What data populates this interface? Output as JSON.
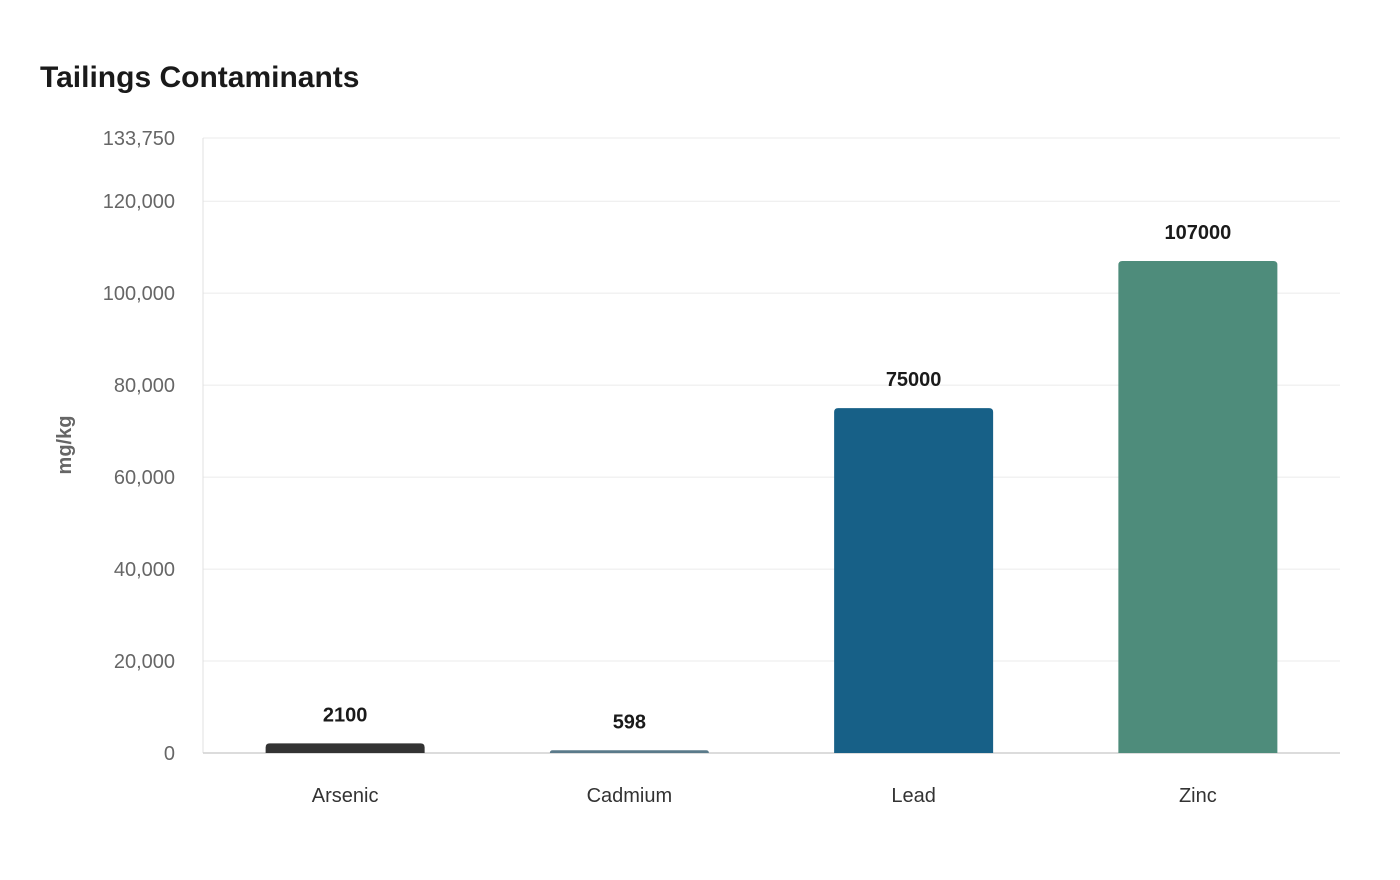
{
  "chart_data": {
    "type": "bar",
    "title": "Tailings Contaminants",
    "xlabel": "",
    "ylabel": "mg/kg",
    "categories": [
      "Arsenic",
      "Cadmium",
      "Lead",
      "Zinc"
    ],
    "values": [
      2100,
      598,
      75000,
      107000
    ],
    "data_labels": [
      "2100",
      "598",
      "75000",
      "107000"
    ],
    "colors": [
      "#333333",
      "#5a7a8a",
      "#176087",
      "#4e8c7b"
    ],
    "ylim": [
      0,
      133750
    ],
    "yticks": [
      0,
      20000,
      40000,
      60000,
      80000,
      100000,
      120000,
      133750
    ],
    "ytick_labels": [
      "0",
      "20,000",
      "40,000",
      "60,000",
      "80,000",
      "100,000",
      "120,000",
      "133,750"
    ],
    "grid": true,
    "legend": "none"
  }
}
